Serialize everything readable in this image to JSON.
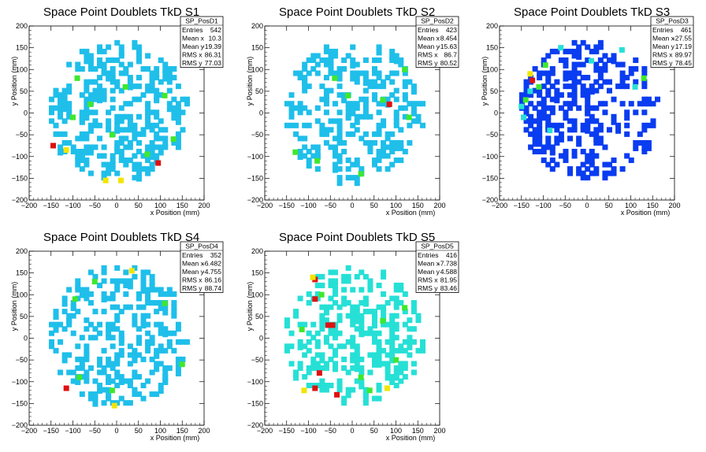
{
  "colors": {
    "palette_low": "#1fbfea",
    "palette_mid": "#26e0d6",
    "palette_green": "#3ee82d",
    "palette_yellow": "#f2e400",
    "palette_red": "#e01010",
    "palette_blue": "#0a3cf0"
  },
  "chart_data": [
    {
      "type": "heatmap",
      "title": "Space Point Doublets TkD S1",
      "xlabel": "x Position (mm)",
      "ylabel": "y Position (mm)",
      "xlim": [
        -200,
        200
      ],
      "ylim": [
        -200,
        200
      ],
      "xticks": [
        "−200",
        "−150",
        "−100",
        "−50",
        "0",
        "50",
        "100",
        "150",
        "200"
      ],
      "yticks": [
        "−200",
        "−150",
        "−100",
        "−50",
        "0",
        "50",
        "100",
        "150",
        "200"
      ],
      "stats": {
        "name": "SP_PosD1",
        "rows": [
          {
            "label": "Entries",
            "value": "542"
          },
          {
            "label": "Mean x",
            "value": "10.3"
          },
          {
            "label": "Mean y",
            "value": "-19.39"
          },
          {
            "label": "RMS x",
            "value": "86.31"
          },
          {
            "label": "RMS y",
            "value": "77.03"
          }
        ]
      },
      "hot_cells": [
        {
          "x": -145,
          "y": -75,
          "level": "red"
        },
        {
          "x": 95,
          "y": -115,
          "level": "red"
        },
        {
          "x": -115,
          "y": -85,
          "level": "yellow"
        },
        {
          "x": -25,
          "y": -155,
          "level": "yellow"
        },
        {
          "x": 10,
          "y": -155,
          "level": "yellow"
        },
        {
          "x": -90,
          "y": 80,
          "level": "green"
        },
        {
          "x": -60,
          "y": 20,
          "level": "green"
        },
        {
          "x": -100,
          "y": -10,
          "level": "green"
        },
        {
          "x": 20,
          "y": 60,
          "level": "green"
        },
        {
          "x": 70,
          "y": -95,
          "level": "green"
        },
        {
          "x": 110,
          "y": 40,
          "level": "green"
        },
        {
          "x": -10,
          "y": -50,
          "level": "green"
        },
        {
          "x": 130,
          "y": -60,
          "level": "green"
        }
      ]
    },
    {
      "type": "heatmap",
      "title": "Space Point Doublets TkD S2",
      "xlabel": "x Position (mm)",
      "ylabel": "y Position (mm)",
      "xlim": [
        -200,
        200
      ],
      "ylim": [
        -200,
        200
      ],
      "xticks": [
        "−200",
        "−150",
        "−100",
        "−50",
        "0",
        "50",
        "100",
        "150",
        "200"
      ],
      "yticks": [
        "−200",
        "−150",
        "−100",
        "−50",
        "0",
        "50",
        "100",
        "150",
        "200"
      ],
      "stats": {
        "name": "SP_PosD2",
        "rows": [
          {
            "label": "Entries",
            "value": "423"
          },
          {
            "label": "Mean x",
            "value": "8.454"
          },
          {
            "label": "Mean y",
            "value": "-15.63"
          },
          {
            "label": "RMS x",
            "value": "86.7"
          },
          {
            "label": "RMS y",
            "value": "80.52"
          }
        ]
      },
      "hot_cells": [
        {
          "x": 85,
          "y": 20,
          "level": "red"
        },
        {
          "x": -130,
          "y": -90,
          "level": "green"
        },
        {
          "x": -40,
          "y": 80,
          "level": "green"
        },
        {
          "x": 70,
          "y": 30,
          "level": "green"
        },
        {
          "x": 130,
          "y": -10,
          "level": "green"
        },
        {
          "x": -80,
          "y": -110,
          "level": "green"
        },
        {
          "x": 20,
          "y": -140,
          "level": "green"
        },
        {
          "x": 120,
          "y": 100,
          "level": "green"
        },
        {
          "x": -10,
          "y": 40,
          "level": "green"
        }
      ]
    },
    {
      "type": "heatmap",
      "title": "Space Point Doublets TkD S3",
      "xlabel": "x Position (mm)",
      "ylabel": "y Position (mm)",
      "xlim": [
        -200,
        200
      ],
      "ylim": [
        -200,
        200
      ],
      "xticks": [
        "−200",
        "−150",
        "−100",
        "−50",
        "0",
        "50",
        "100",
        "150",
        "200"
      ],
      "yticks": [
        "−200",
        "−150",
        "−100",
        "−50",
        "0",
        "50",
        "100",
        "150",
        "200"
      ],
      "stats": {
        "name": "SP_PosD3",
        "rows": [
          {
            "label": "Entries",
            "value": "461"
          },
          {
            "label": "Mean x",
            "value": "-27.55"
          },
          {
            "label": "Mean y",
            "value": "17.19"
          },
          {
            "label": "RMS x",
            "value": "89.97"
          },
          {
            "label": "RMS y",
            "value": "78.45"
          }
        ]
      },
      "hot_cells": [
        {
          "x": -125,
          "y": 75,
          "level": "red"
        },
        {
          "x": -130,
          "y": 90,
          "level": "yellow"
        },
        {
          "x": -110,
          "y": 60,
          "level": "green"
        },
        {
          "x": -140,
          "y": 30,
          "level": "green"
        },
        {
          "x": -95,
          "y": 110,
          "level": "green"
        },
        {
          "x": -145,
          "y": -10,
          "level": "cyan"
        },
        {
          "x": -150,
          "y": 15,
          "level": "cyan"
        },
        {
          "x": 80,
          "y": 145,
          "level": "cyan"
        },
        {
          "x": 110,
          "y": 60,
          "level": "cyan"
        },
        {
          "x": -85,
          "y": -40,
          "level": "cyan"
        },
        {
          "x": -60,
          "y": 150,
          "level": "cyan"
        },
        {
          "x": 10,
          "y": 120,
          "level": "cyan"
        },
        {
          "x": 130,
          "y": 80,
          "level": "green"
        },
        {
          "x": -130,
          "y": 50,
          "level": "cyan"
        }
      ]
    },
    {
      "type": "heatmap",
      "title": "Space Point Doublets TkD S4",
      "xlabel": "x Position (mm)",
      "ylabel": "y Position (mm)",
      "xlim": [
        -200,
        200
      ],
      "ylim": [
        -200,
        200
      ],
      "xticks": [
        "−200",
        "−150",
        "−100",
        "−50",
        "0",
        "50",
        "100",
        "150",
        "200"
      ],
      "yticks": [
        "−200",
        "−150",
        "−100",
        "−50",
        "0",
        "50",
        "100",
        "150",
        "200"
      ],
      "stats": {
        "name": "SP_PosD4",
        "rows": [
          {
            "label": "Entries",
            "value": "352"
          },
          {
            "label": "Mean x",
            "value": "-6.482"
          },
          {
            "label": "Mean y",
            "value": "-4.755"
          },
          {
            "label": "RMS x",
            "value": "86.16"
          },
          {
            "label": "RMS y",
            "value": "88.74"
          }
        ]
      },
      "hot_cells": [
        {
          "x": -115,
          "y": -115,
          "level": "red"
        },
        {
          "x": 35,
          "y": 155,
          "level": "yellow"
        },
        {
          "x": -5,
          "y": -155,
          "level": "yellow"
        },
        {
          "x": -50,
          "y": 130,
          "level": "green"
        },
        {
          "x": -10,
          "y": -120,
          "level": "green"
        },
        {
          "x": -85,
          "y": -90,
          "level": "green"
        },
        {
          "x": 110,
          "y": 80,
          "level": "green"
        },
        {
          "x": -95,
          "y": 90,
          "level": "green"
        },
        {
          "x": 150,
          "y": -60,
          "level": "green"
        }
      ]
    },
    {
      "type": "heatmap",
      "title": "Space Point Doublets TkD S5",
      "xlabel": "x Position (mm)",
      "ylabel": "y Position (mm)",
      "xlim": [
        -200,
        200
      ],
      "ylim": [
        -200,
        200
      ],
      "xticks": [
        "−200",
        "−150",
        "−100",
        "−50",
        "0",
        "50",
        "100",
        "150",
        "200"
      ],
      "yticks": [
        "−200",
        "−150",
        "−100",
        "−50",
        "0",
        "50",
        "100",
        "150",
        "200"
      ],
      "stats": {
        "name": "SP_PosD5",
        "rows": [
          {
            "label": "Entries",
            "value": "416"
          },
          {
            "label": "Mean x",
            "value": "-7.738"
          },
          {
            "label": "Mean y",
            "value": "4.588"
          },
          {
            "label": "RMS x",
            "value": "81.95"
          },
          {
            "label": "RMS y",
            "value": "83.46"
          }
        ]
      },
      "hot_cells": [
        {
          "x": -85,
          "y": 135,
          "level": "red"
        },
        {
          "x": -85,
          "y": 90,
          "level": "red"
        },
        {
          "x": -55,
          "y": 30,
          "level": "red"
        },
        {
          "x": -45,
          "y": 30,
          "level": "red"
        },
        {
          "x": -75,
          "y": -80,
          "level": "red"
        },
        {
          "x": -85,
          "y": -115,
          "level": "red"
        },
        {
          "x": -35,
          "y": -130,
          "level": "red"
        },
        {
          "x": -90,
          "y": 140,
          "level": "yellow"
        },
        {
          "x": 80,
          "y": -115,
          "level": "yellow"
        },
        {
          "x": -115,
          "y": 20,
          "level": "green"
        },
        {
          "x": -70,
          "y": 100,
          "level": "green"
        },
        {
          "x": 20,
          "y": -90,
          "level": "green"
        },
        {
          "x": 70,
          "y": 40,
          "level": "green"
        },
        {
          "x": 100,
          "y": -50,
          "level": "green"
        },
        {
          "x": -110,
          "y": -120,
          "level": "yellow"
        },
        {
          "x": 40,
          "y": -120,
          "level": "green"
        },
        {
          "x": 120,
          "y": 70,
          "level": "green"
        }
      ]
    }
  ]
}
